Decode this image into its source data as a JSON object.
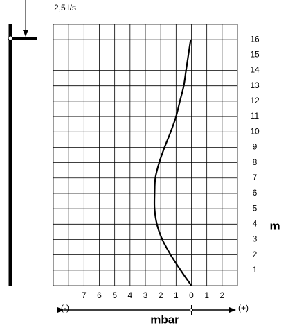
{
  "chart_data": {
    "type": "line",
    "flow_label": "2,5 l/s",
    "xlabel": "mbar",
    "ylabel": "m",
    "negative_label": "(-)",
    "positive_label": "(+)",
    "series": [
      {
        "color": "#000000",
        "x": [
          0,
          -0.7,
          -1.35,
          -1.9,
          -2.25,
          -2.4,
          -2.4,
          -2.35,
          -2.1,
          -1.75,
          -1.35,
          -1.0,
          -0.75,
          -0.5,
          -0.35,
          -0.2,
          -0.05
        ],
        "values": [
          0,
          1,
          2,
          3,
          4,
          5,
          6,
          7,
          8,
          9,
          10,
          11,
          12,
          13,
          14,
          15,
          16
        ]
      }
    ],
    "xlim": [
      -9,
      3
    ],
    "xticks": [
      {
        "value": -7,
        "label": "7"
      },
      {
        "value": -6,
        "label": "6"
      },
      {
        "value": -5,
        "label": "5"
      },
      {
        "value": -4,
        "label": "4"
      },
      {
        "value": -3,
        "label": "3"
      },
      {
        "value": -2,
        "label": "2"
      },
      {
        "value": -1,
        "label": "1"
      },
      0,
      1,
      2
    ],
    "ylim": [
      0,
      17
    ],
    "yticks": [
      1,
      2,
      3,
      4,
      5,
      6,
      7,
      8,
      9,
      10,
      11,
      12,
      13,
      14,
      15,
      16
    ],
    "grid": true
  }
}
